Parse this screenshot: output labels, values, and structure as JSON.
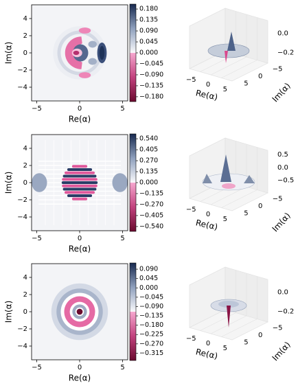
{
  "chart_data": [
    {
      "type": "heatmap",
      "state": "cat-like",
      "xlabel": "Re(α)",
      "ylabel": "Im(α)",
      "xlim": [
        -5.6,
        5.6
      ],
      "ylim": [
        -5.6,
        5.6
      ],
      "xticks": [
        "−5",
        "0",
        "5"
      ],
      "yticks": [
        "4",
        "2",
        "0",
        "−2",
        "−4"
      ],
      "colorbar": {
        "min": -0.2,
        "max": 0.2,
        "ticks": [
          "0.180",
          "0.135",
          "0.090",
          "0.045",
          "0.000",
          "−0.045",
          "−0.090",
          "−0.135",
          "−0.180"
        ]
      },
      "surface": {
        "xlabel": "Re(α)",
        "ylabel": "Im(α)",
        "xticks": [
          "−5",
          "0",
          "5"
        ],
        "yticks": [
          "5",
          "0",
          "−5"
        ],
        "zticks": [
          "0.0",
          "−0.2"
        ]
      }
    },
    {
      "type": "heatmap",
      "state": "two-coherent superposition",
      "xlabel": "Re(α)",
      "ylabel": "Im(α)",
      "xlim": [
        -5.6,
        5.6
      ],
      "ylim": [
        -5.6,
        5.6
      ],
      "xticks": [
        "−5",
        "0",
        "5"
      ],
      "yticks": [
        "4",
        "2",
        "0",
        "−2",
        "−4"
      ],
      "colorbar": {
        "min": -0.6,
        "max": 0.6,
        "ticks": [
          "0.540",
          "0.405",
          "0.270",
          "0.135",
          "0.000",
          "−0.135",
          "−0.270",
          "−0.405",
          "−0.540"
        ]
      },
      "surface": {
        "xlabel": "Re(α)",
        "ylabel": "Im(α)",
        "xticks": [
          "−5",
          "0",
          "5"
        ],
        "yticks": [
          "5",
          "0",
          "−5"
        ],
        "zticks": [
          "0.5",
          "0.0",
          "−0.5"
        ]
      }
    },
    {
      "type": "heatmap",
      "state": "Fock-like",
      "xlabel": "Re(α)",
      "ylabel": "Im(α)",
      "xlim": [
        -5.6,
        5.6
      ],
      "ylim": [
        -5.6,
        5.6
      ],
      "xticks": [
        "−5",
        "0",
        "5"
      ],
      "yticks": [
        "4",
        "2",
        "0",
        "−2",
        "−4"
      ],
      "colorbar": {
        "min": -0.35,
        "max": 0.12,
        "ticks": [
          "0.090",
          "0.045",
          "0.000",
          "−0.045",
          "−0.090",
          "−0.135",
          "−0.180",
          "−0.225",
          "−0.270",
          "−0.315"
        ]
      },
      "surface": {
        "xlabel": "Re(α)",
        "ylabel": "Im(α)",
        "xticks": [
          "−5",
          "0",
          "5"
        ],
        "yticks": [
          "5",
          "0",
          "−5"
        ],
        "zticks": [
          "0.0",
          "−0.2"
        ]
      }
    }
  ]
}
